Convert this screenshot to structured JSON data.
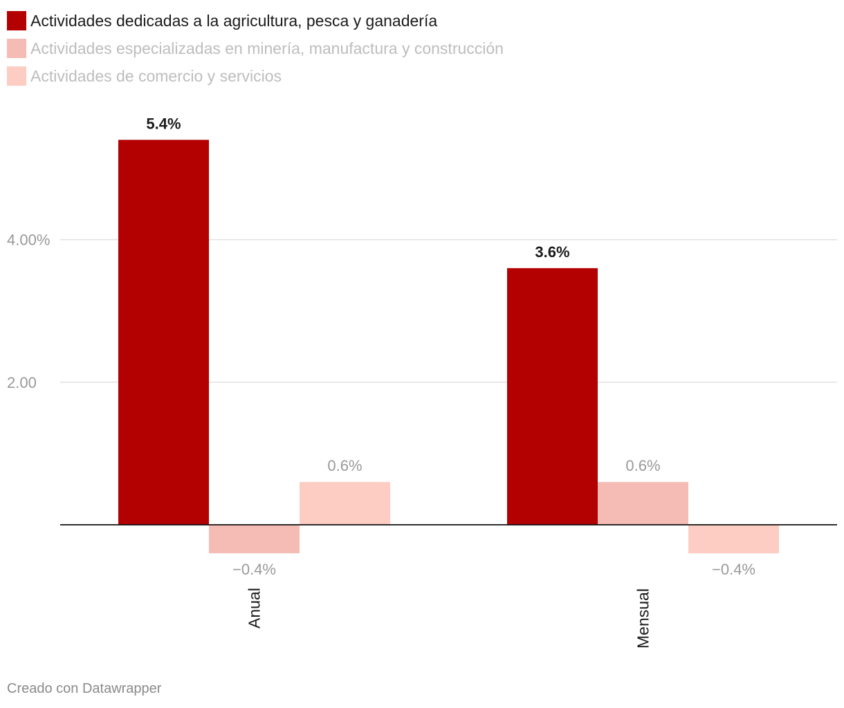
{
  "chart_data": {
    "type": "bar",
    "categories": [
      "Anual",
      "Mensual"
    ],
    "series": [
      {
        "name": "Actividades dedicadas a la agricultura, pesca y ganadería",
        "values": [
          5.4,
          3.6
        ],
        "labels": [
          "5.4%",
          "3.6%"
        ],
        "color": "#b30000",
        "highlight": true
      },
      {
        "name": "Actividades especializadas en minería, manufactura y construcción",
        "values": [
          -0.4,
          0.6
        ],
        "labels": [
          "−0.4%",
          "0.6%"
        ],
        "color": "#f5bcb6",
        "highlight": false
      },
      {
        "name": "Actividades de comercio y servicios",
        "values": [
          0.6,
          -0.4
        ],
        "labels": [
          "0.6%",
          "−0.4%"
        ],
        "color": "#fdccc2",
        "highlight": false
      }
    ],
    "y_ticks": [
      {
        "value": 4,
        "label": "4.00%"
      },
      {
        "value": 2,
        "label": "2.00"
      }
    ],
    "ylim": [
      -0.65,
      5.85
    ],
    "grid": true,
    "legend_position": "top-left",
    "colors": {
      "label_dark": "#1a1a1a",
      "label_muted": "#999999",
      "grid": "#e0e0e0",
      "axis": "#111111"
    }
  },
  "footer": "Creado con Datawrapper"
}
